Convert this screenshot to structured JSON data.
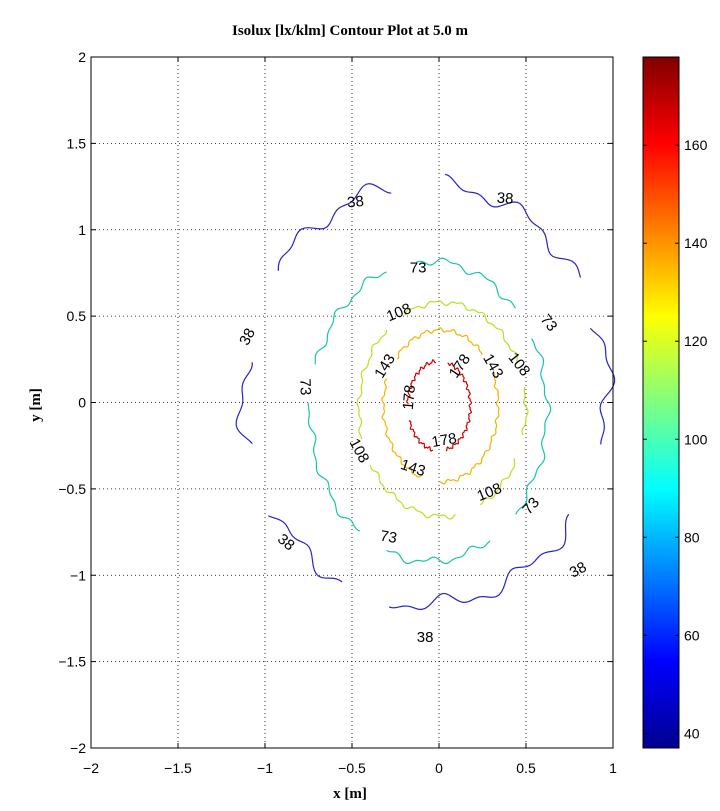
{
  "chart_data": {
    "type": "contour",
    "title": "Isolux [lx/klm] Contour Plot at 5.0 m",
    "xlabel": "x [m]",
    "ylabel": "y [m]",
    "xlim": [
      -2,
      1
    ],
    "ylim": [
      -2,
      2
    ],
    "x_ticks": [
      -2,
      -1.5,
      -1,
      -0.5,
      0,
      0.5,
      1
    ],
    "x_tick_labels": [
      "−2",
      "−1.5",
      "−1",
      "−0.5",
      "0",
      "0.5",
      "1"
    ],
    "y_ticks": [
      -2,
      -1.5,
      -1,
      -0.5,
      0,
      0.5,
      1,
      1.5,
      2
    ],
    "y_tick_labels": [
      "−2",
      "−1.5",
      "−1",
      "−0.5",
      "0",
      "0.5",
      "1",
      "1.5",
      "2"
    ],
    "grid": true,
    "colorbar": {
      "range": [
        37,
        178
      ],
      "ticks": [
        40,
        60,
        80,
        100,
        120,
        140,
        160
      ],
      "tick_labels": [
        "40",
        "60",
        "80",
        "100",
        "120",
        "140",
        "160"
      ]
    },
    "levels": [
      {
        "value": 38,
        "label": "38",
        "color": "#2b23c8",
        "cx": -0.08,
        "cy": 0.05,
        "rx": 1.05,
        "ry": 1.22,
        "noise": 0.03,
        "freq": 14,
        "gaps": [
          [
            20,
            32
          ],
          [
            85,
            100
          ],
          [
            145,
            170
          ],
          [
            195,
            213
          ],
          [
            244,
            258
          ],
          [
            325,
            345
          ]
        ]
      },
      {
        "value": 73,
        "label": "73",
        "color": "#18c6a6",
        "cx": -0.06,
        "cy": -0.05,
        "rx": 0.68,
        "ry": 0.87,
        "noise": 0.02,
        "freq": 18,
        "gaps": [
          [
            30,
            42
          ],
          [
            97,
            110
          ],
          [
            163,
            176
          ],
          [
            235,
            248
          ],
          [
            302,
            316
          ]
        ]
      },
      {
        "value": 108,
        "label": "108",
        "color": "#b6e21e",
        "cx": 0.02,
        "cy": -0.04,
        "rx": 0.48,
        "ry": 0.62,
        "noise": 0.018,
        "freq": 22,
        "gaps": [
          [
            13,
            26
          ],
          [
            118,
            131
          ],
          [
            197,
            210
          ],
          [
            280,
            296
          ],
          [
            333,
            345
          ]
        ]
      },
      {
        "value": 143,
        "label": "143",
        "color": "#f0b400",
        "cx": 0.01,
        "cy": -0.02,
        "rx": 0.33,
        "ry": 0.44,
        "noise": 0.02,
        "freq": 26,
        "gaps": [
          [
            26,
            42
          ],
          [
            142,
            158
          ],
          [
            252,
            268
          ]
        ]
      },
      {
        "value": 178,
        "label": "178",
        "color": "#cc0000",
        "cx": 0.0,
        "cy": -0.02,
        "rx": 0.18,
        "ry": 0.26,
        "noise": 0.03,
        "freq": 30,
        "gaps": [
          [
            75,
            95
          ],
          [
            178,
            198
          ],
          [
            260,
            282
          ]
        ]
      }
    ],
    "contour_labels": [
      {
        "text": "38",
        "x": -0.48,
        "y": 1.16,
        "angle": -6
      },
      {
        "text": "38",
        "x": 0.38,
        "y": 1.18,
        "angle": 4
      },
      {
        "text": "38",
        "x": -1.1,
        "y": 0.38,
        "angle": -62
      },
      {
        "text": "38",
        "x": -0.88,
        "y": -0.81,
        "angle": 40
      },
      {
        "text": "38",
        "x": -0.08,
        "y": -1.36,
        "angle": 0
      },
      {
        "text": "38",
        "x": 0.8,
        "y": -0.97,
        "angle": -28
      },
      {
        "text": "73",
        "x": -0.12,
        "y": 0.78,
        "angle": 0
      },
      {
        "text": "73",
        "x": 0.63,
        "y": 0.46,
        "angle": 52
      },
      {
        "text": "73",
        "x": -0.77,
        "y": 0.09,
        "angle": 88
      },
      {
        "text": "73",
        "x": -0.29,
        "y": -0.78,
        "angle": 10
      },
      {
        "text": "73",
        "x": 0.53,
        "y": -0.6,
        "angle": -48
      },
      {
        "text": "108",
        "x": -0.23,
        "y": 0.52,
        "angle": -22
      },
      {
        "text": "108",
        "x": 0.46,
        "y": 0.22,
        "angle": 52
      },
      {
        "text": "108",
        "x": -0.46,
        "y": -0.28,
        "angle": 62
      },
      {
        "text": "108",
        "x": 0.29,
        "y": -0.52,
        "angle": -22
      },
      {
        "text": "143",
        "x": -0.31,
        "y": 0.21,
        "angle": -58
      },
      {
        "text": "143",
        "x": 0.31,
        "y": 0.21,
        "angle": 60
      },
      {
        "text": "143",
        "x": -0.15,
        "y": -0.38,
        "angle": 18
      },
      {
        "text": "178",
        "x": 0.12,
        "y": 0.21,
        "angle": -55
      },
      {
        "text": "178",
        "x": -0.17,
        "y": 0.03,
        "angle": -85
      },
      {
        "text": "178",
        "x": 0.03,
        "y": -0.22,
        "angle": -10
      }
    ]
  }
}
